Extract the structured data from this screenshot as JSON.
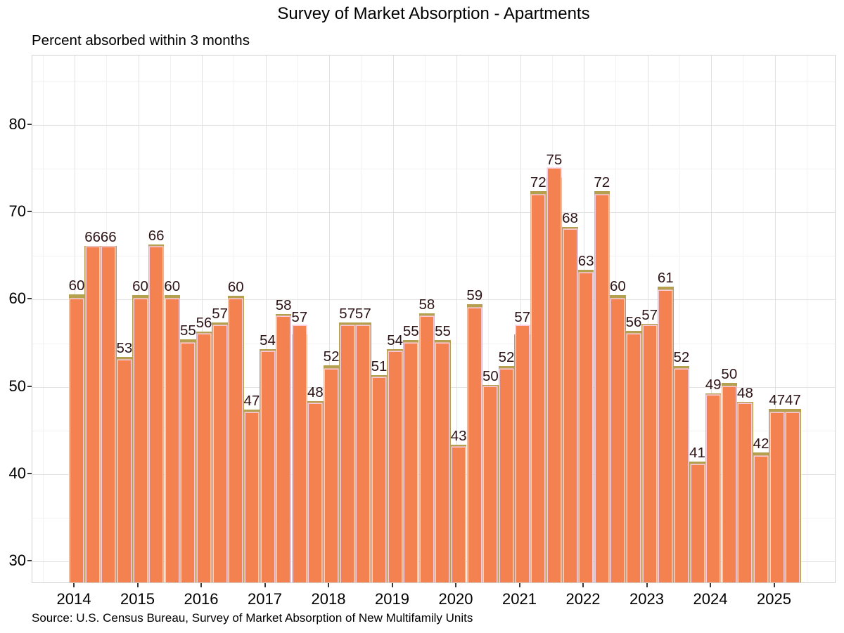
{
  "title": "Survey of Market Absorption - Apartments",
  "subtitle": "Percent absorbed within 3 months",
  "source": "Source: U.S. Census Bureau, Survey of Market Absorption of New Multifamily Units",
  "chart_data": {
    "type": "bar",
    "title": "Survey of Market Absorption - Apartments",
    "subtitle": "Percent absorbed within 3 months",
    "caption": "Source: U.S. Census Bureau, Survey of Market Absorption of New Multifamily Units",
    "xlabel": "",
    "ylabel": "Percent absorbed within 3 months",
    "categories": [
      "2014 Q1",
      "2014 Q2",
      "2014 Q3",
      "2014 Q4",
      "2015 Q1",
      "2015 Q2",
      "2015 Q3",
      "2015 Q4",
      "2016 Q1",
      "2016 Q2",
      "2016 Q3",
      "2016 Q4",
      "2017 Q1",
      "2017 Q2",
      "2017 Q3",
      "2017 Q4",
      "2018 Q1",
      "2018 Q2",
      "2018 Q3",
      "2018 Q4",
      "2019 Q1",
      "2019 Q2",
      "2019 Q3",
      "2019 Q4",
      "2020 Q1",
      "2020 Q2",
      "2020 Q3",
      "2020 Q4",
      "2021 Q1",
      "2021 Q2",
      "2021 Q3",
      "2021 Q4",
      "2022 Q1",
      "2022 Q2",
      "2022 Q3",
      "2022 Q4",
      "2023 Q1",
      "2023 Q2",
      "2023 Q3",
      "2023 Q4",
      "2024 Q1",
      "2024 Q2",
      "2024 Q3",
      "2024 Q4",
      "2025 Q1",
      "2025 Q2"
    ],
    "values": [
      60,
      66,
      66,
      53,
      60,
      66,
      60,
      55,
      56,
      57,
      60,
      47,
      54,
      58,
      57,
      48,
      52,
      57,
      57,
      51,
      54,
      55,
      58,
      55,
      43,
      59,
      50,
      52,
      57,
      72,
      75,
      68,
      63,
      72,
      60,
      56,
      57,
      61,
      52,
      41,
      49,
      50,
      48,
      42,
      47,
      47
    ],
    "back_bar_overhang": [
      0.6,
      0.2,
      0.2,
      0.45,
      0.5,
      0.35,
      0.5,
      0.45,
      0.35,
      0.35,
      0.45,
      0.35,
      0.35,
      0.35,
      0,
      0.35,
      0.45,
      0.35,
      0.35,
      0.35,
      0.35,
      0.35,
      0.45,
      0.35,
      0.35,
      0.45,
      0.2,
      0.35,
      0,
      0.45,
      0,
      0.35,
      0.45,
      0.45,
      0.5,
      0.45,
      0.25,
      0.5,
      0.35,
      0.45,
      0.25,
      0.45,
      0.25,
      0.45,
      0.45,
      0.45
    ],
    "x_tick_years": [
      2014,
      2015,
      2016,
      2017,
      2018,
      2019,
      2020,
      2021,
      2022,
      2023,
      2024,
      2025
    ],
    "x_tick_labels": [
      "2014",
      "2015",
      "2016",
      "2017",
      "2018",
      "2019",
      "2020",
      "2021",
      "2022",
      "2023",
      "2024",
      "2025"
    ],
    "x_minor_years": [
      2013.5,
      2014.5,
      2015.5,
      2016.5,
      2017.5,
      2018.5,
      2019.5,
      2020.5,
      2021.5,
      2022.5,
      2023.5,
      2024.5,
      2025.5
    ],
    "y_ticks_major": [
      30,
      40,
      50,
      60,
      70,
      80
    ],
    "y_tick_labels": [
      "30",
      "40",
      "50",
      "60",
      "70",
      "80"
    ],
    "y_ticks_minor": [
      35,
      45,
      55,
      65,
      75,
      85
    ],
    "ylim": [
      27.4,
      88
    ],
    "grid": true,
    "legend": "none",
    "colors": {
      "bar_fill": "#f48250",
      "bar_outline": "#fcc9da",
      "back_bar_fill": "#b5a050",
      "label_text": "#2e1416",
      "grid_major": "#e2e2e2",
      "grid_minor": "#f2f2f2",
      "panel_border": "#d2d2d2",
      "axis_text": "#000000"
    }
  }
}
